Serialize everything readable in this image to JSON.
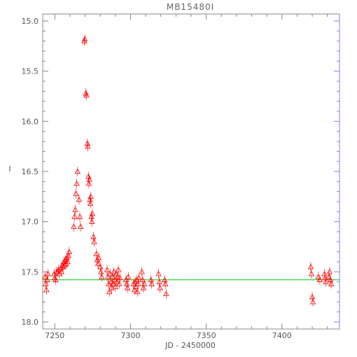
{
  "chart_data": {
    "type": "scatter",
    "title": "MB15480I",
    "xlabel": "JD - 2450000",
    "ylabel": "I",
    "xlim": [
      7242,
      7438
    ],
    "ylim": [
      18.07,
      14.93
    ],
    "y_inverted": true,
    "x_ticks": [
      7250,
      7300,
      7350,
      7400
    ],
    "y_ticks": [
      15.0,
      15.5,
      16.0,
      16.5,
      17.0,
      17.5,
      18.0
    ],
    "x_tick_labels": [
      "7250",
      "7300",
      "7350",
      "7400"
    ],
    "y_tick_labels": [
      "15.0",
      "15.5",
      "16.0",
      "16.5",
      "17.0",
      "17.5",
      "18.0"
    ],
    "baseline": 17.58,
    "colors": {
      "points": "#ff0000",
      "baseline": "#00c800",
      "frame": "#888888",
      "right_axis": "#7f7fff"
    },
    "series": [
      {
        "marker": "open-triangle",
        "points": [
          {
            "x": 7243.5,
            "y": 17.55
          },
          {
            "x": 7244.0,
            "y": 17.62
          },
          {
            "x": 7244.5,
            "y": 17.68
          },
          {
            "x": 7245.0,
            "y": 17.58
          },
          {
            "x": 7245.5,
            "y": 17.52
          },
          {
            "x": 7249.5,
            "y": 17.52
          },
          {
            "x": 7250.0,
            "y": 17.56
          },
          {
            "x": 7250.5,
            "y": 17.58
          },
          {
            "x": 7251.0,
            "y": 17.5
          },
          {
            "x": 7252.0,
            "y": 17.5
          },
          {
            "x": 7252.5,
            "y": 17.48
          },
          {
            "x": 7253.0,
            "y": 17.52
          },
          {
            "x": 7254.0,
            "y": 17.46
          },
          {
            "x": 7254.5,
            "y": 17.5
          },
          {
            "x": 7255.0,
            "y": 17.44
          },
          {
            "x": 7255.5,
            "y": 17.45
          },
          {
            "x": 7256.0,
            "y": 17.4
          },
          {
            "x": 7256.5,
            "y": 17.43
          },
          {
            "x": 7257.0,
            "y": 17.38
          },
          {
            "x": 7257.5,
            "y": 17.42
          },
          {
            "x": 7258.0,
            "y": 17.36
          },
          {
            "x": 7258.5,
            "y": 17.4
          },
          {
            "x": 7259.0,
            "y": 17.34
          },
          {
            "x": 7259.5,
            "y": 17.3
          },
          {
            "x": 7262.5,
            "y": 17.05
          },
          {
            "x": 7263.0,
            "y": 16.95
          },
          {
            "x": 7263.5,
            "y": 16.88
          },
          {
            "x": 7264.0,
            "y": 16.72
          },
          {
            "x": 7264.5,
            "y": 16.62
          },
          {
            "x": 7265.0,
            "y": 16.5
          },
          {
            "x": 7266.0,
            "y": 16.78
          },
          {
            "x": 7266.5,
            "y": 16.95
          },
          {
            "x": 7267.0,
            "y": 17.05
          },
          {
            "x": 7269.5,
            "y": 15.2
          },
          {
            "x": 7269.8,
            "y": 15.18
          },
          {
            "x": 7270.5,
            "y": 15.72
          },
          {
            "x": 7270.8,
            "y": 15.74
          },
          {
            "x": 7271.5,
            "y": 16.22
          },
          {
            "x": 7271.8,
            "y": 16.25
          },
          {
            "x": 7272.2,
            "y": 16.55
          },
          {
            "x": 7272.5,
            "y": 16.62
          },
          {
            "x": 7272.8,
            "y": 16.58
          },
          {
            "x": 7273.2,
            "y": 16.78
          },
          {
            "x": 7273.5,
            "y": 16.82
          },
          {
            "x": 7273.8,
            "y": 16.75
          },
          {
            "x": 7274.2,
            "y": 16.95
          },
          {
            "x": 7274.5,
            "y": 17.0
          },
          {
            "x": 7274.8,
            "y": 16.92
          },
          {
            "x": 7275.5,
            "y": 17.15
          },
          {
            "x": 7276.0,
            "y": 17.2
          },
          {
            "x": 7277.5,
            "y": 17.32
          },
          {
            "x": 7278.0,
            "y": 17.38
          },
          {
            "x": 7278.5,
            "y": 17.42
          },
          {
            "x": 7279.0,
            "y": 17.36
          },
          {
            "x": 7280.0,
            "y": 17.45
          },
          {
            "x": 7280.5,
            "y": 17.5
          },
          {
            "x": 7281.0,
            "y": 17.55
          },
          {
            "x": 7284.5,
            "y": 17.48
          },
          {
            "x": 7285.0,
            "y": 17.55
          },
          {
            "x": 7285.5,
            "y": 17.62
          },
          {
            "x": 7286.0,
            "y": 17.7
          },
          {
            "x": 7286.5,
            "y": 17.52
          },
          {
            "x": 7287.0,
            "y": 17.6
          },
          {
            "x": 7287.5,
            "y": 17.66
          },
          {
            "x": 7288.0,
            "y": 17.55
          },
          {
            "x": 7288.5,
            "y": 17.62
          },
          {
            "x": 7289.0,
            "y": 17.5
          },
          {
            "x": 7289.5,
            "y": 17.58
          },
          {
            "x": 7290.0,
            "y": 17.65
          },
          {
            "x": 7290.5,
            "y": 17.52
          },
          {
            "x": 7291.0,
            "y": 17.6
          },
          {
            "x": 7291.5,
            "y": 17.55
          },
          {
            "x": 7292.0,
            "y": 17.48
          },
          {
            "x": 7292.5,
            "y": 17.62
          },
          {
            "x": 7293.0,
            "y": 17.56
          },
          {
            "x": 7297.0,
            "y": 17.58
          },
          {
            "x": 7297.5,
            "y": 17.62
          },
          {
            "x": 7298.0,
            "y": 17.66
          },
          {
            "x": 7298.5,
            "y": 17.55
          },
          {
            "x": 7302.0,
            "y": 17.62
          },
          {
            "x": 7302.5,
            "y": 17.68
          },
          {
            "x": 7303.0,
            "y": 17.6
          },
          {
            "x": 7303.5,
            "y": 17.65
          },
          {
            "x": 7304.0,
            "y": 17.58
          },
          {
            "x": 7304.5,
            "y": 17.7
          },
          {
            "x": 7305.0,
            "y": 17.62
          },
          {
            "x": 7305.5,
            "y": 17.56
          },
          {
            "x": 7307.5,
            "y": 17.5
          },
          {
            "x": 7308.0,
            "y": 17.58
          },
          {
            "x": 7308.5,
            "y": 17.66
          },
          {
            "x": 7309.0,
            "y": 17.62
          },
          {
            "x": 7313.5,
            "y": 17.58
          },
          {
            "x": 7314.0,
            "y": 17.62
          },
          {
            "x": 7318.5,
            "y": 17.52
          },
          {
            "x": 7319.0,
            "y": 17.6
          },
          {
            "x": 7319.5,
            "y": 17.66
          },
          {
            "x": 7322.5,
            "y": 17.58
          },
          {
            "x": 7323.0,
            "y": 17.62
          },
          {
            "x": 7323.5,
            "y": 17.72
          },
          {
            "x": 7419.0,
            "y": 17.45
          },
          {
            "x": 7419.5,
            "y": 17.52
          },
          {
            "x": 7420.0,
            "y": 17.75
          },
          {
            "x": 7420.5,
            "y": 17.8
          },
          {
            "x": 7424.0,
            "y": 17.55
          },
          {
            "x": 7425.0,
            "y": 17.58
          },
          {
            "x": 7428.0,
            "y": 17.52
          },
          {
            "x": 7428.5,
            "y": 17.56
          },
          {
            "x": 7429.0,
            "y": 17.6
          },
          {
            "x": 7431.0,
            "y": 17.55
          },
          {
            "x": 7431.5,
            "y": 17.5
          },
          {
            "x": 7432.0,
            "y": 17.58
          },
          {
            "x": 7432.5,
            "y": 17.62
          }
        ]
      }
    ]
  }
}
